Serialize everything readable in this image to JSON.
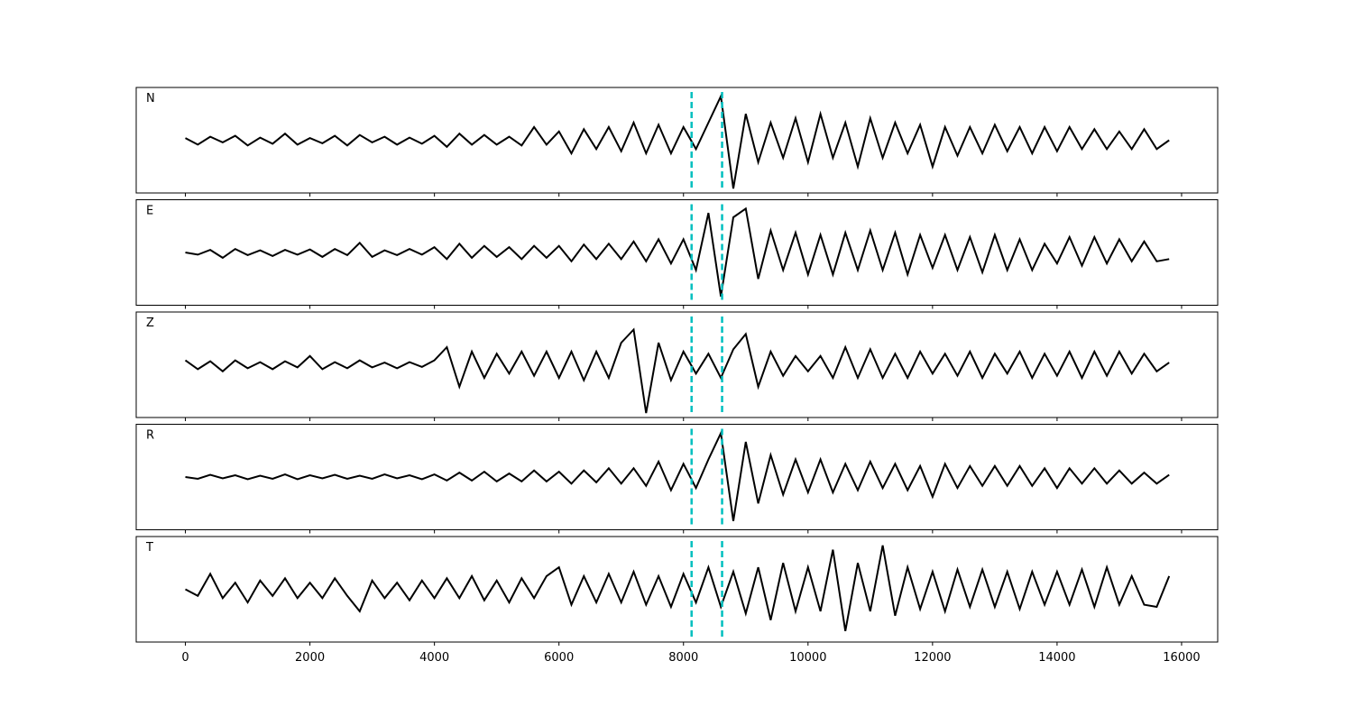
{
  "chart_data": {
    "type": "line",
    "layout": "stacked",
    "x": [
      0,
      200,
      400,
      600,
      800,
      1000,
      1200,
      1400,
      1600,
      1800,
      2000,
      2200,
      2400,
      2600,
      2800,
      3000,
      3200,
      3400,
      3600,
      3800,
      4000,
      4200,
      4400,
      4600,
      4800,
      5000,
      5200,
      5400,
      5600,
      5800,
      6000,
      6200,
      6400,
      6600,
      6800,
      7000,
      7200,
      7400,
      7600,
      7800,
      8000,
      8200,
      8400,
      8600,
      8800,
      9000,
      9200,
      9400,
      9600,
      9800,
      10000,
      10200,
      10400,
      10600,
      10800,
      11000,
      11200,
      11400,
      11600,
      11800,
      12000,
      12200,
      12400,
      12600,
      12800,
      13000,
      13200,
      13400,
      13600,
      13800,
      14000,
      14200,
      14400,
      14600,
      14800,
      15000,
      15200,
      15400,
      15600,
      15800
    ],
    "xlim": [
      -790,
      16580
    ],
    "xticks": [
      0,
      2000,
      4000,
      6000,
      8000,
      10000,
      12000,
      14000,
      16000
    ],
    "ylim": [
      -1.2,
      1.2
    ],
    "vlines": [
      8130,
      8620
    ],
    "vline_color": "#00bfbf",
    "series": [
      {
        "name": "N",
        "color": "#000000",
        "values": [
          0.05,
          -0.1,
          0.08,
          -0.05,
          0.1,
          -0.12,
          0.06,
          -0.08,
          0.15,
          -0.1,
          0.05,
          -0.07,
          0.1,
          -0.12,
          0.12,
          -0.05,
          0.08,
          -0.1,
          0.06,
          -0.08,
          0.1,
          -0.15,
          0.15,
          -0.1,
          0.12,
          -0.1,
          0.08,
          -0.12,
          0.3,
          -0.1,
          0.2,
          -0.3,
          0.25,
          -0.2,
          0.3,
          -0.25,
          0.4,
          -0.3,
          0.35,
          -0.3,
          0.3,
          -0.2,
          0.4,
          1.0,
          -1.1,
          0.6,
          -0.5,
          0.4,
          -0.4,
          0.5,
          -0.5,
          0.6,
          -0.4,
          0.4,
          -0.6,
          0.5,
          -0.4,
          0.4,
          -0.3,
          0.35,
          -0.6,
          0.3,
          -0.35,
          0.3,
          -0.3,
          0.35,
          -0.25,
          0.3,
          -0.3,
          0.3,
          -0.25,
          0.3,
          -0.2,
          0.25,
          -0.2,
          0.2,
          -0.2,
          0.25,
          -0.2,
          0.0
        ]
      },
      {
        "name": "E",
        "color": "#000000",
        "values": [
          0.0,
          -0.05,
          0.06,
          -0.12,
          0.08,
          -0.06,
          0.05,
          -0.08,
          0.06,
          -0.05,
          0.07,
          -0.1,
          0.08,
          -0.06,
          0.22,
          -0.1,
          0.05,
          -0.06,
          0.08,
          -0.05,
          0.12,
          -0.15,
          0.2,
          -0.12,
          0.15,
          -0.1,
          0.12,
          -0.15,
          0.15,
          -0.12,
          0.15,
          -0.2,
          0.18,
          -0.15,
          0.2,
          -0.15,
          0.25,
          -0.2,
          0.3,
          -0.25,
          0.3,
          -0.4,
          0.9,
          -1.0,
          0.8,
          1.0,
          -0.6,
          0.5,
          -0.4,
          0.45,
          -0.5,
          0.4,
          -0.5,
          0.45,
          -0.4,
          0.5,
          -0.4,
          0.45,
          -0.5,
          0.4,
          -0.35,
          0.4,
          -0.4,
          0.35,
          -0.45,
          0.4,
          -0.4,
          0.3,
          -0.4,
          0.2,
          -0.25,
          0.35,
          -0.3,
          0.35,
          -0.25,
          0.3,
          -0.2,
          0.25,
          -0.2,
          -0.15
        ]
      },
      {
        "name": "Z",
        "color": "#000000",
        "values": [
          0.1,
          -0.1,
          0.08,
          -0.15,
          0.1,
          -0.08,
          0.06,
          -0.1,
          0.08,
          -0.06,
          0.2,
          -0.1,
          0.06,
          -0.08,
          0.1,
          -0.06,
          0.05,
          -0.08,
          0.06,
          -0.05,
          0.1,
          0.4,
          -0.5,
          0.3,
          -0.3,
          0.25,
          -0.2,
          0.3,
          -0.25,
          0.3,
          -0.3,
          0.3,
          -0.35,
          0.3,
          -0.3,
          0.5,
          0.8,
          -1.1,
          0.5,
          -0.35,
          0.3,
          -0.2,
          0.25,
          -0.3,
          0.35,
          0.7,
          -0.5,
          0.3,
          -0.25,
          0.2,
          -0.15,
          0.2,
          -0.3,
          0.4,
          -0.3,
          0.35,
          -0.3,
          0.25,
          -0.3,
          0.3,
          -0.2,
          0.25,
          -0.25,
          0.3,
          -0.3,
          0.25,
          -0.2,
          0.3,
          -0.3,
          0.25,
          -0.25,
          0.3,
          -0.3,
          0.3,
          -0.25,
          0.3,
          -0.2,
          0.25,
          -0.15,
          0.05
        ]
      },
      {
        "name": "R",
        "color": "#000000",
        "values": [
          0.0,
          -0.04,
          0.05,
          -0.03,
          0.04,
          -0.05,
          0.03,
          -0.04,
          0.06,
          -0.05,
          0.04,
          -0.03,
          0.05,
          -0.04,
          0.03,
          -0.04,
          0.06,
          -0.03,
          0.04,
          -0.05,
          0.06,
          -0.08,
          0.1,
          -0.08,
          0.12,
          -0.1,
          0.08,
          -0.1,
          0.15,
          -0.1,
          0.12,
          -0.15,
          0.15,
          -0.12,
          0.2,
          -0.15,
          0.2,
          -0.2,
          0.35,
          -0.3,
          0.3,
          -0.25,
          0.4,
          1.0,
          -1.0,
          0.8,
          -0.6,
          0.5,
          -0.4,
          0.4,
          -0.35,
          0.4,
          -0.35,
          0.3,
          -0.3,
          0.35,
          -0.25,
          0.3,
          -0.3,
          0.25,
          -0.45,
          0.3,
          -0.25,
          0.25,
          -0.2,
          0.25,
          -0.2,
          0.25,
          -0.2,
          0.2,
          -0.25,
          0.2,
          -0.15,
          0.2,
          -0.15,
          0.15,
          -0.15,
          0.1,
          -0.15,
          0.05
        ]
      },
      {
        "name": "T",
        "color": "#000000",
        "values": [
          0.0,
          -0.15,
          0.35,
          -0.2,
          0.15,
          -0.3,
          0.2,
          -0.15,
          0.25,
          -0.2,
          0.15,
          -0.2,
          0.25,
          -0.15,
          -0.5,
          0.2,
          -0.2,
          0.15,
          -0.25,
          0.2,
          -0.2,
          0.25,
          -0.2,
          0.3,
          -0.25,
          0.2,
          -0.3,
          0.25,
          -0.2,
          0.3,
          0.5,
          -0.35,
          0.3,
          -0.3,
          0.35,
          -0.3,
          0.4,
          -0.35,
          0.3,
          -0.4,
          0.35,
          -0.3,
          0.5,
          -0.4,
          0.4,
          -0.55,
          0.5,
          -0.7,
          0.6,
          -0.5,
          0.5,
          -0.5,
          0.9,
          -0.95,
          0.6,
          -0.5,
          1.0,
          -0.6,
          0.5,
          -0.45,
          0.4,
          -0.5,
          0.45,
          -0.4,
          0.45,
          -0.4,
          0.4,
          -0.45,
          0.4,
          -0.35,
          0.4,
          -0.35,
          0.45,
          -0.4,
          0.5,
          -0.35,
          0.3,
          -0.35,
          -0.4,
          0.3
        ]
      }
    ]
  }
}
